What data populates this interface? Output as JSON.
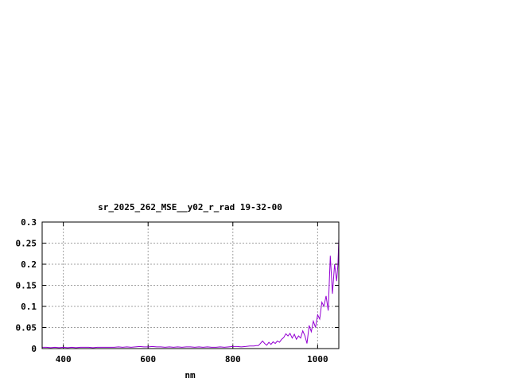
{
  "chart_data": {
    "type": "line",
    "title": "sr_2025_262_MSE__y02_r_rad 19-32-00",
    "xlabel": "nm",
    "ylabel": "",
    "xlim": [
      350,
      1050
    ],
    "ylim": [
      0,
      0.3
    ],
    "xticks": [
      400,
      600,
      800,
      1000
    ],
    "xtick_labels": [
      "400",
      "600",
      "800",
      "1000"
    ],
    "yticks": [
      0,
      0.05,
      0.1,
      0.15,
      0.2,
      0.25,
      0.3
    ],
    "ytick_labels": [
      "0",
      "0.05",
      "0.1",
      "0.15",
      "0.2",
      "0.25",
      "0.3"
    ],
    "grid": true,
    "line_color": "#9400d3",
    "series": [
      {
        "x": [
          350,
          360,
          370,
          380,
          390,
          400,
          410,
          420,
          430,
          440,
          450,
          460,
          470,
          480,
          490,
          500,
          510,
          520,
          530,
          540,
          550,
          560,
          570,
          580,
          590,
          600,
          610,
          620,
          630,
          640,
          650,
          660,
          670,
          680,
          690,
          700,
          710,
          720,
          730,
          740,
          750,
          760,
          770,
          780,
          790,
          800,
          810,
          820,
          830,
          840,
          850,
          855,
          860,
          865,
          870,
          875,
          880,
          885,
          890,
          895,
          900,
          905,
          910,
          915,
          920,
          925,
          930,
          935,
          940,
          945,
          950,
          955,
          960,
          965,
          970,
          975,
          980,
          985,
          990,
          995,
          1000,
          1005,
          1010,
          1015,
          1020,
          1025,
          1030,
          1035,
          1040,
          1045,
          1048,
          1050
        ],
        "y": [
          0.003,
          0.003,
          0.002,
          0.003,
          0.002,
          0.003,
          0.002,
          0.003,
          0.002,
          0.003,
          0.003,
          0.003,
          0.002,
          0.003,
          0.003,
          0.003,
          0.003,
          0.003,
          0.004,
          0.003,
          0.004,
          0.003,
          0.004,
          0.005,
          0.004,
          0.004,
          0.005,
          0.004,
          0.004,
          0.003,
          0.004,
          0.003,
          0.004,
          0.003,
          0.004,
          0.004,
          0.003,
          0.004,
          0.003,
          0.004,
          0.003,
          0.003,
          0.004,
          0.003,
          0.004,
          0.005,
          0.005,
          0.004,
          0.005,
          0.006,
          0.006,
          0.007,
          0.007,
          0.012,
          0.018,
          0.012,
          0.008,
          0.015,
          0.01,
          0.016,
          0.012,
          0.018,
          0.015,
          0.022,
          0.026,
          0.035,
          0.03,
          0.036,
          0.025,
          0.034,
          0.022,
          0.03,
          0.025,
          0.042,
          0.03,
          0.012,
          0.055,
          0.04,
          0.065,
          0.05,
          0.08,
          0.07,
          0.11,
          0.1,
          0.125,
          0.09,
          0.22,
          0.13,
          0.2,
          0.16,
          0.2,
          0.26
        ]
      }
    ]
  }
}
